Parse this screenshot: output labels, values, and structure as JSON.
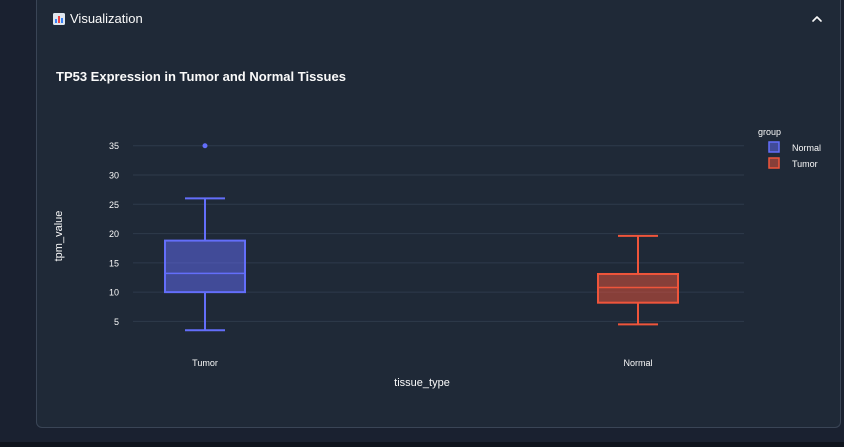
{
  "expander": {
    "icon": "bar-chart-icon",
    "title": "Visualization",
    "chevron": "chevron-up-icon"
  },
  "chart_data": {
    "type": "box",
    "title": "TP53 Expression in Tumor and Normal Tissues",
    "xlabel": "tissue_type",
    "ylabel": "tpm_value",
    "categories": [
      "Tumor",
      "Normal"
    ],
    "yticks": [
      5,
      10,
      15,
      20,
      25,
      30,
      35
    ],
    "ylim": [
      2,
      37
    ],
    "grid": true,
    "legend": {
      "title": "group",
      "placement": "top-right",
      "entries": [
        "Normal",
        "Tumor"
      ]
    },
    "series": [
      {
        "name": "Normal",
        "category": "Tumor",
        "color": "#636efa",
        "min": 3.5,
        "q1": 10.0,
        "median": 13.2,
        "q3": 18.8,
        "max": 26.0,
        "outliers": [
          35.0
        ]
      },
      {
        "name": "Tumor",
        "category": "Normal",
        "color": "#ef553b",
        "min": 4.5,
        "q1": 8.2,
        "median": 10.8,
        "q3": 13.1,
        "max": 19.6,
        "outliers": []
      }
    ]
  }
}
